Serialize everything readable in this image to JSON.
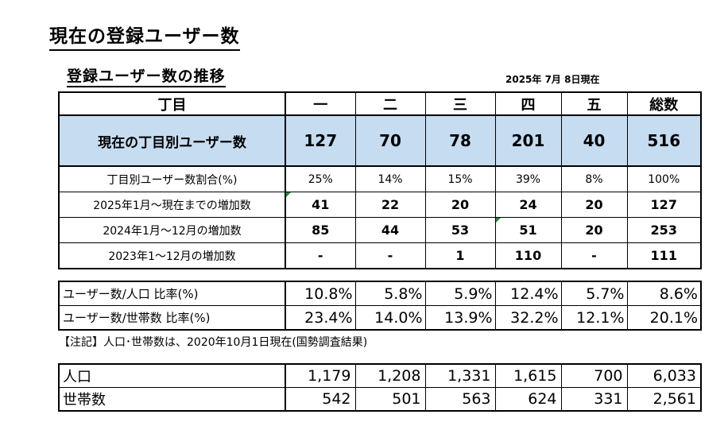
{
  "page_title": "現在の登録ユーザー数",
  "section_title": "登録ユーザー数の推移",
  "as_of": "2025年 7月 8日現在",
  "main_table": {
    "header": [
      "丁目",
      "一",
      "二",
      "三",
      "四",
      "五",
      "総数"
    ],
    "current_row": {
      "label": "現在の丁目別ユーザー数",
      "values": [
        "127",
        "70",
        "78",
        "201",
        "40",
        "516"
      ]
    },
    "share_row": {
      "label": "丁目別ユーザー数割合(%)",
      "values": [
        "25%",
        "14%",
        "15%",
        "39%",
        "8%",
        "100%"
      ]
    },
    "inc_2025_row": {
      "label": "2025年1月～現在までの増加数",
      "values": [
        "41",
        "22",
        "20",
        "24",
        "20",
        "127"
      ]
    },
    "inc_2024_row": {
      "label": "2024年1月～12月の増加数",
      "values": [
        "85",
        "44",
        "53",
        "51",
        "20",
        "253"
      ]
    },
    "inc_2023_row": {
      "label": "2023年1～12月の増加数",
      "values": [
        "-",
        "-",
        "1",
        "110",
        "-",
        "111"
      ]
    }
  },
  "ratio_table": {
    "pop_ratio_row": {
      "label": "ユーザー数/人口 比率(%)",
      "values": [
        "10.8%",
        "5.8%",
        "5.9%",
        "12.4%",
        "5.7%",
        "8.6%"
      ]
    },
    "household_ratio_row": {
      "label": "ユーザー数/世帯数 比率(%)",
      "values": [
        "23.4%",
        "14.0%",
        "13.9%",
        "32.2%",
        "12.1%",
        "20.1%"
      ]
    }
  },
  "note": "【注記】人口･世帯数は、2020年10月1日現在(国勢調査結果)",
  "pop_table": {
    "population_row": {
      "label": "人口",
      "values": [
        "1,179",
        "1,208",
        "1,331",
        "1,615",
        "700",
        "6,033"
      ]
    },
    "households_row": {
      "label": "世帯数",
      "values": [
        "542",
        "501",
        "563",
        "624",
        "331",
        "2,561"
      ]
    }
  },
  "colors": {
    "current_row_fill": "#c5dcf1",
    "comment_marker": "#1f8a3c"
  }
}
